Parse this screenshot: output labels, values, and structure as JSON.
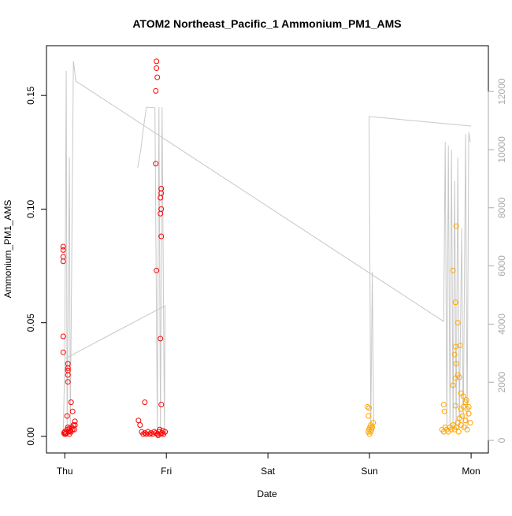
{
  "chart_data": {
    "type": "scatter",
    "title": "ATOM2 Northeast_Pacific_1 Ammonium_PM1_AMS",
    "x_label": "Date",
    "y_label": "Ammonium_PM1_AMS",
    "xlim": [
      -0.18,
      4.17
    ],
    "xticks": [
      {
        "value": 0,
        "label": "Thu"
      },
      {
        "value": 1,
        "label": "Fri"
      },
      {
        "value": 2,
        "label": "Sat"
      },
      {
        "value": 3,
        "label": "Sun"
      },
      {
        "value": 4,
        "label": "Mon"
      }
    ],
    "ylim": [
      -0.0073,
      0.1719
    ],
    "yticks": [
      {
        "value": 0,
        "label": "0.00"
      },
      0.05,
      {
        "value": 0.1,
        "label": "0.10"
      },
      0.15
    ],
    "y2lim": [
      -433,
      13575
    ],
    "y2ticks": [
      0,
      2000,
      4000,
      6000,
      8000,
      10000,
      12000
    ],
    "y2color": "#aaaaaa",
    "series": [
      {
        "color": "#ff0000",
        "x": [
          -0.015,
          -0.015,
          -0.015,
          -0.015,
          -0.015,
          -0.015,
          0.031,
          0.031,
          0.031,
          0.031,
          0.031,
          0.062,
          0.077,
          0.023,
          0.1,
          0.1,
          0,
          0.008,
          0.015,
          0.023,
          0.031,
          0.038,
          0.046,
          0.054,
          0.062,
          0.069,
          0.077,
          0.085,
          0.093,
          -0.008,
          0,
          0.046,
          0.903,
          0.903,
          0.911,
          0.896,
          0.896,
          0.95,
          0.95,
          0.942,
          0.95,
          0.942,
          0.95,
          0.903,
          0.942,
          0.788,
          0.95,
          0.726,
          0.741,
          0.757,
          0.772,
          0.788,
          0.803,
          0.818,
          0.834,
          0.849,
          0.865,
          0.88,
          0.896,
          0.911,
          0.927,
          0.942,
          0.958,
          0.973,
          0.988,
          0.919,
          0.934,
          0.965
        ],
        "values": [
          0.0835,
          0.082,
          0.079,
          0.077,
          0.044,
          0.037,
          0.032,
          0.03,
          0.029,
          0.027,
          0.024,
          0.015,
          0.011,
          0.009,
          0.0066,
          0.005,
          0.002,
          0.001,
          0.0015,
          0.003,
          0.004,
          0.002,
          0.001,
          0.0025,
          0.002,
          0.004,
          0.003,
          0.005,
          0.003,
          0.0015,
          0.001,
          0.0035,
          0.165,
          0.162,
          0.158,
          0.152,
          0.12,
          0.109,
          0.107,
          0.105,
          0.1,
          0.098,
          0.088,
          0.073,
          0.043,
          0.015,
          0.014,
          0.007,
          0.005,
          0.002,
          0.001,
          0.0015,
          0.001,
          0.002,
          0.001,
          0.0015,
          0.001,
          0.002,
          0.0015,
          0.001,
          0.002,
          0.001,
          0.0015,
          0.001,
          0.002,
          0.0005,
          0.003,
          0.0025
        ]
      },
      {
        "color": "#ffa500",
        "x": [
          2.98,
          2.996,
          2.99,
          3.012,
          2.988,
          2.996,
          3.004,
          3.012,
          3.02,
          3.027,
          3.035,
          3,
          3.853,
          3.822,
          3.846,
          3.869,
          3.892,
          3.846,
          3.838,
          3.853,
          3.869,
          3.884,
          3.822,
          3.846,
          3.9,
          3.923,
          3.954,
          3.73,
          3.846,
          3.737,
          3.923,
          3.961,
          3.977,
          3.714,
          3.73,
          3.745,
          3.761,
          3.776,
          3.792,
          3.807,
          3.822,
          3.838,
          3.853,
          3.869,
          3.884,
          3.9,
          3.915,
          3.93,
          3.946,
          3.961,
          3.977,
          3.992,
          3.877,
          3.9,
          3.946
        ],
        "values": [
          0.013,
          0.0125,
          0.009,
          0.005,
          0.002,
          0.003,
          0.004,
          0.002,
          0.003,
          0.004,
          0.006,
          0.001,
          0.0925,
          0.073,
          0.059,
          0.05,
          0.04,
          0.0395,
          0.036,
          0.032,
          0.027,
          0.026,
          0.0225,
          0.0256,
          0.019,
          0.0177,
          0.016,
          0.014,
          0.0135,
          0.011,
          0.013,
          0.012,
          0.013,
          0.003,
          0.002,
          0.004,
          0.003,
          0.002,
          0.004,
          0.003,
          0.005,
          0.003,
          0.004,
          0.006,
          0.008,
          0.005,
          0.009,
          0.004,
          0.007,
          0.003,
          0.01,
          0.006,
          0.002,
          0.012,
          0.015
        ]
      },
      {
        "type": "line",
        "axis": "y2",
        "color": "#c8c8c8",
        "x": [
          -0.015,
          0,
          0.015,
          0.023,
          0.046,
          0.054,
          0.085,
          0.093,
          0.108,
          3.73,
          3.745,
          3.761,
          3.776,
          3.792,
          3.807,
          3.822,
          3.838,
          3.853,
          3.869,
          3.884,
          3.907,
          3.923,
          3.946,
          3.961,
          3.977,
          3.992,
          null,
          0.008,
          0.988,
          0.981,
          0.958,
          0.942,
          0.927,
          0.911,
          0.888,
          0.803,
          0.772,
          0.749,
          0.718,
          null,
          4,
          2.996,
          3.012,
          3.027,
          3.035,
          3.042
        ],
        "values": [
          240,
          2680,
          12710,
          380,
          9730,
          240,
          13040,
          12850,
          12360,
          4090,
          10270,
          380,
          10140,
          380,
          10000,
          380,
          8920,
          380,
          9730,
          380,
          7290,
          380,
          10540,
          380,
          10600,
          10270,
          null,
          2820,
          4630,
          380,
          11460,
          380,
          11460,
          380,
          11440,
          11460,
          10680,
          10000,
          9380,
          null,
          10810,
          11140,
          380,
          5800,
          2950,
          380
        ]
      }
    ]
  }
}
